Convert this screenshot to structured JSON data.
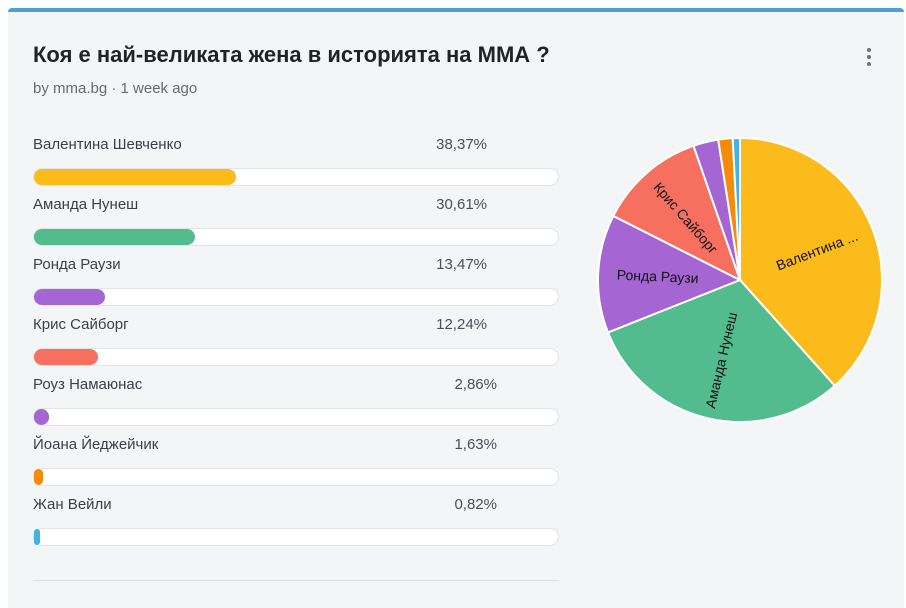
{
  "poll": {
    "title": "Коя е най-великата жена в историята на ММА ?",
    "subtitle": "by mma.bg · 1 week ago",
    "menu_icon": "kebab-menu-icon",
    "options": [
      {
        "label": "Валентина Шевченко",
        "percent_text": "38,37%",
        "value": 38.37,
        "color": "#fbbc1b",
        "pie_label": "Валентина ..."
      },
      {
        "label": "Аманда Нунеш",
        "percent_text": "30,61%",
        "value": 30.61,
        "color": "#52bc8f",
        "pie_label": "Аманда Нунеш"
      },
      {
        "label": "Ронда Раузи",
        "percent_text": "13,47%",
        "value": 13.47,
        "color": "#a566d3",
        "pie_label": "Ронда Раузи"
      },
      {
        "label": "Крис Сайборг",
        "percent_text": "12,24%",
        "value": 12.24,
        "color": "#f76f5f",
        "pie_label": "Крис Сайборг"
      },
      {
        "label": "Роуз Намаюнас",
        "percent_text": "2,86%",
        "value": 2.86,
        "color": "#a566d3",
        "pie_label": ""
      },
      {
        "label": "Йоана Йеджейчик",
        "percent_text": "1,63%",
        "value": 1.63,
        "color": "#f58a0b",
        "pie_label": ""
      },
      {
        "label": "Жан Вейли",
        "percent_text": "0,82%",
        "value": 0.82,
        "color": "#42b3e5",
        "pie_label": ""
      }
    ]
  },
  "chart_data": {
    "type": "pie",
    "categories": [
      "Валентина Шевченко",
      "Аманда Нунеш",
      "Ронда Раузи",
      "Крис Сайборг",
      "Роуз Намаюнас",
      "Йоана Йеджейчик",
      "Жан Вейли"
    ],
    "values": [
      38.37,
      30.61,
      13.47,
      12.24,
      2.86,
      1.63,
      0.82
    ],
    "colors": [
      "#fbbc1b",
      "#52bc8f",
      "#a566d3",
      "#f76f5f",
      "#a566d3",
      "#f58a0b",
      "#42b3e5"
    ],
    "title": ""
  }
}
